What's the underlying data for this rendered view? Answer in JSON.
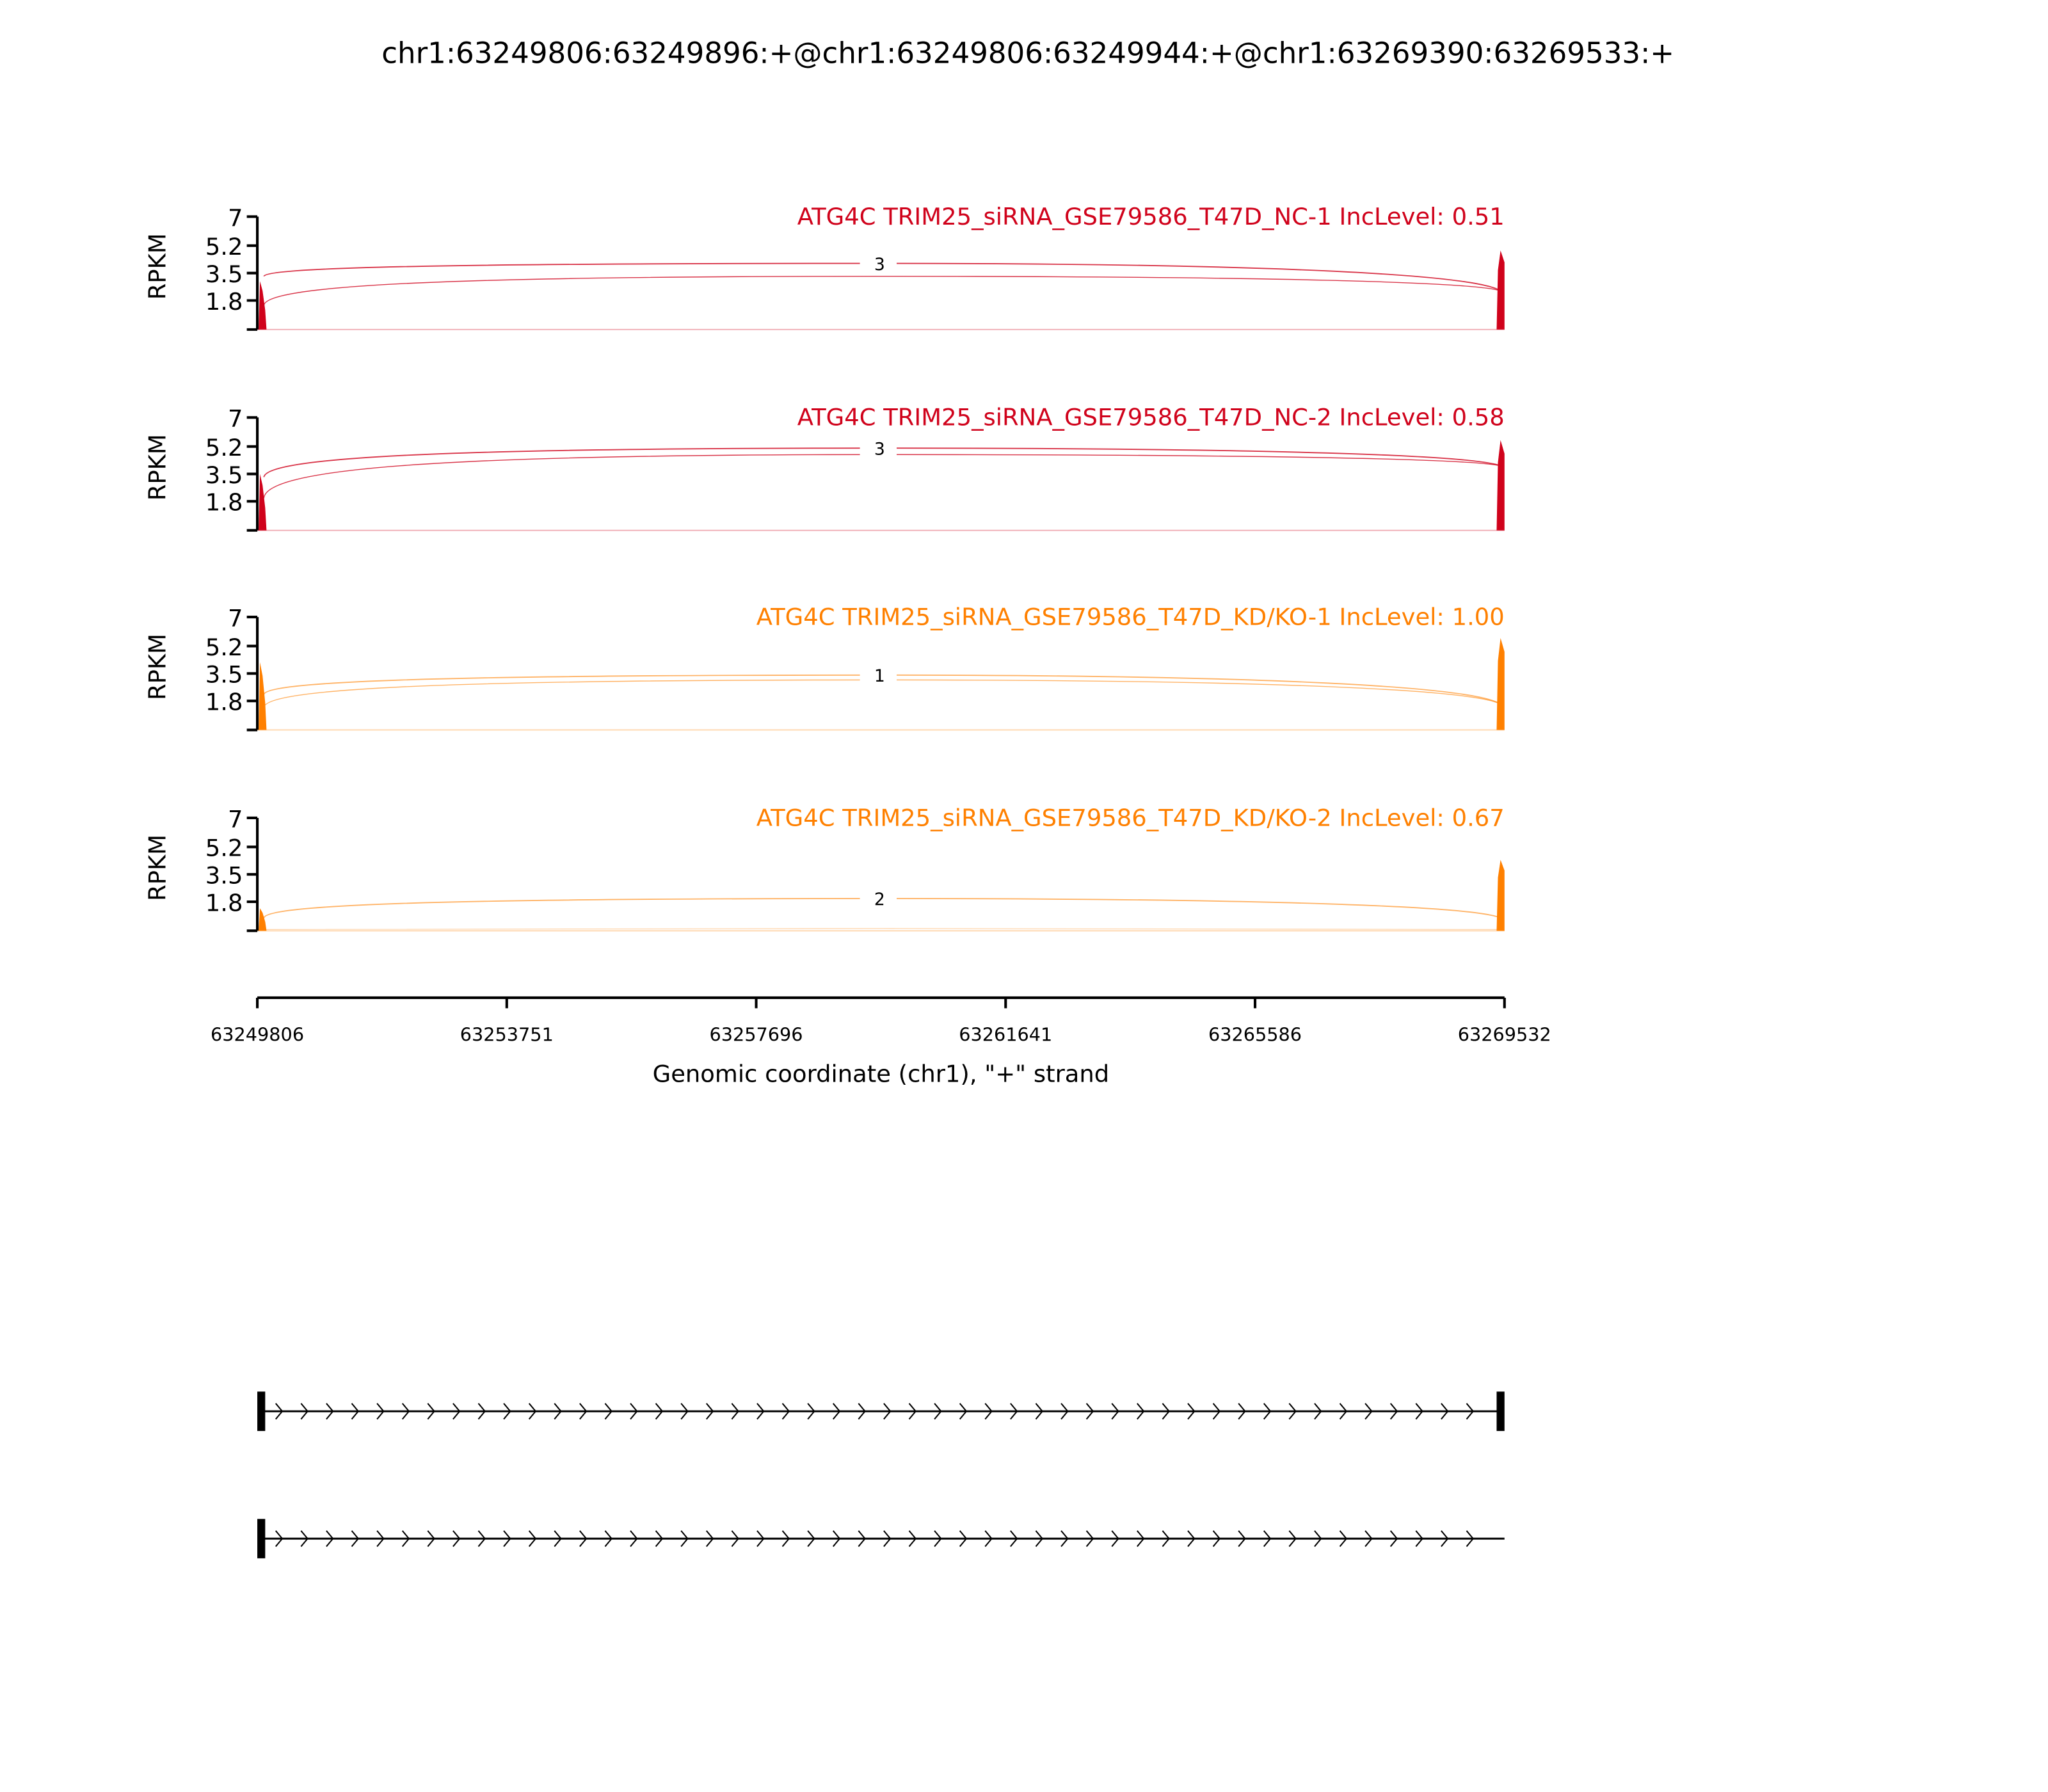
{
  "chart_data": {
    "type": "sashimi",
    "title": "chr1:63249806:63249896:+@chr1:63249806:63249944:+@chr1:63269390:63269533:+",
    "xlabel": "Genomic coordinate (chr1), \"+\" strand",
    "ylabel": "RPKM",
    "xlim": [
      63249806,
      63269532
    ],
    "xticks": [
      "63249806",
      "63253751",
      "63257696",
      "63261641",
      "63265586",
      "63269532"
    ],
    "ylim": [
      0,
      7
    ],
    "yticks": [
      "7",
      "5.2",
      "3.5",
      "1.8"
    ],
    "yticks_values": [
      7,
      5.2,
      3.5,
      1.8,
      0
    ],
    "panels": [
      {
        "title": "ATG4C TRIM25_siRNA_GSE79586_T47D_NC-1 IncLevel: 0.51",
        "color": "#d0021b",
        "arc_label": "3",
        "left_exon_peak": 3.0,
        "right_exon_peak": 4.9,
        "arcs": [
          {
            "start": 3.3,
            "peak": 4.1,
            "end": 2.4
          },
          {
            "start": 1.5,
            "peak": 3.3,
            "end": 2.4
          }
        ]
      },
      {
        "title": "ATG4C TRIM25_siRNA_GSE79586_T47D_NC-2 IncLevel: 0.58",
        "color": "#d0021b",
        "arc_label": "3",
        "left_exon_peak": 3.5,
        "right_exon_peak": 5.6,
        "arcs": [
          {
            "start": 3.3,
            "peak": 5.1,
            "end": 4.0
          },
          {
            "start": 2.0,
            "peak": 4.7,
            "end": 4.0
          }
        ]
      },
      {
        "title": "ATG4C TRIM25_siRNA_GSE79586_T47D_KD/KO-1 IncLevel: 1.00",
        "color": "#ff8000",
        "arc_label": "1",
        "left_exon_peak": 4.2,
        "right_exon_peak": 5.7,
        "arcs": [
          {
            "start": 2.2,
            "peak": 3.4,
            "end": 1.6
          },
          {
            "start": 1.4,
            "peak": 3.1,
            "end": 1.6
          }
        ]
      },
      {
        "title": "ATG4C TRIM25_siRNA_GSE79586_T47D_KD/KO-2 IncLevel: 0.67",
        "color": "#ff8000",
        "arc_label": "2",
        "left_exon_peak": 1.4,
        "right_exon_peak": 4.4,
        "arcs": [
          {
            "start": 0.8,
            "peak": 2.0,
            "end": 0.8
          }
        ]
      }
    ],
    "transcripts": [
      {
        "exons": [
          "left",
          "right"
        ]
      },
      {
        "exons": [
          "left"
        ]
      }
    ]
  }
}
